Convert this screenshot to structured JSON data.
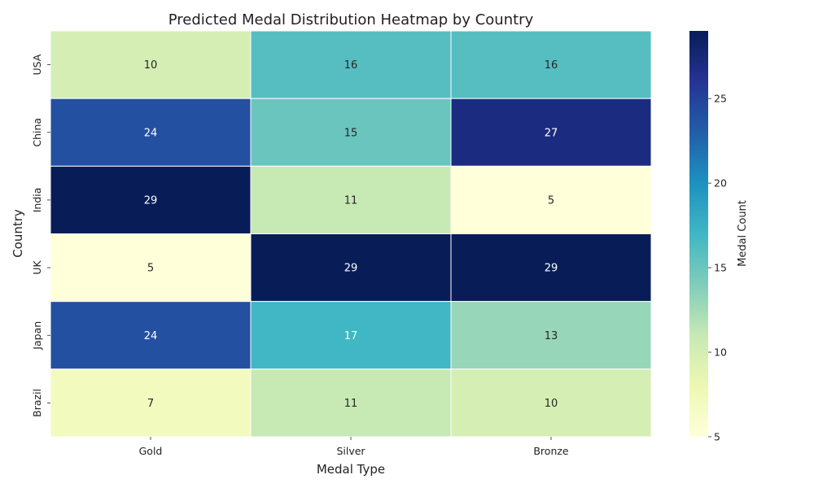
{
  "chart_data": {
    "type": "heatmap",
    "title": "Predicted Medal Distribution Heatmap by Country",
    "xlabel": "Medal Type",
    "ylabel": "Country",
    "x_categories": [
      "Gold",
      "Silver",
      "Bronze"
    ],
    "y_categories": [
      "USA",
      "China",
      "India",
      "UK",
      "Japan",
      "Brazil"
    ],
    "values": [
      [
        10,
        16,
        16
      ],
      [
        24,
        15,
        27
      ],
      [
        29,
        11,
        5
      ],
      [
        5,
        29,
        29
      ],
      [
        24,
        17,
        13
      ],
      [
        7,
        11,
        10
      ]
    ],
    "colorbar": {
      "label": "Medal Count",
      "range": [
        5,
        29
      ],
      "ticks": [
        5,
        10,
        15,
        20,
        25
      ],
      "colormap": "YlGnBu"
    },
    "annotated": true
  }
}
